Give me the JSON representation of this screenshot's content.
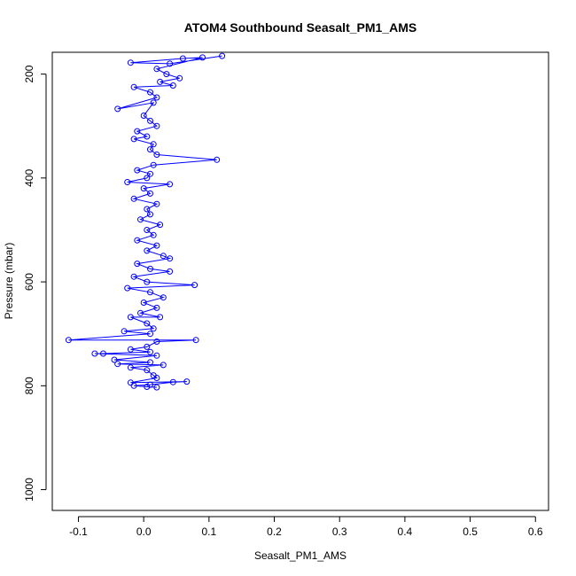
{
  "chart_data": {
    "type": "line",
    "title": "ATOM4 Southbound Seasalt_PM1_AMS",
    "xlabel": "Seasalt_PM1_AMS",
    "ylabel": "Pressure (mbar)",
    "xlim": [
      -0.14,
      0.62
    ],
    "ylim": [
      1040,
      158
    ],
    "y_reversed": true,
    "grid": false,
    "legend": "none",
    "x_ticks": [
      -0.1,
      0.0,
      0.1,
      0.2,
      0.3,
      0.4,
      0.5,
      0.6
    ],
    "x_tick_labels": [
      "-0.1",
      "0.0",
      "0.1",
      "0.2",
      "0.3",
      "0.4",
      "0.5",
      "0.6"
    ],
    "y_ticks": [
      200,
      400,
      600,
      800,
      1000
    ],
    "y_tick_labels": [
      "200",
      "400",
      "600",
      "800",
      "1000"
    ],
    "series": [
      {
        "color": "#0000FF",
        "marker": "open-circle",
        "line": true,
        "points": [
          [
            0.12,
            165
          ],
          [
            0.04,
            180
          ],
          [
            -0.02,
            178
          ],
          [
            0.06,
            170
          ],
          [
            0.09,
            168
          ],
          [
            0.02,
            190
          ],
          [
            0.035,
            200
          ],
          [
            0.055,
            208
          ],
          [
            0.025,
            215
          ],
          [
            0.045,
            222
          ],
          [
            -0.015,
            225
          ],
          [
            0.01,
            235
          ],
          [
            0.02,
            245
          ],
          [
            -0.04,
            267
          ],
          [
            0.015,
            255
          ],
          [
            0.0,
            280
          ],
          [
            0.01,
            290
          ],
          [
            0.02,
            300
          ],
          [
            -0.01,
            310
          ],
          [
            0.005,
            320
          ],
          [
            -0.015,
            325
          ],
          [
            0.015,
            335
          ],
          [
            0.01,
            345
          ],
          [
            0.02,
            355
          ],
          [
            0.112,
            365
          ],
          [
            0.015,
            375
          ],
          [
            -0.01,
            385
          ],
          [
            0.01,
            392
          ],
          [
            0.005,
            400
          ],
          [
            -0.025,
            408
          ],
          [
            0.04,
            412
          ],
          [
            0.0,
            420
          ],
          [
            0.01,
            430
          ],
          [
            -0.015,
            440
          ],
          [
            0.02,
            450
          ],
          [
            0.005,
            460
          ],
          [
            0.01,
            470
          ],
          [
            -0.005,
            480
          ],
          [
            0.025,
            490
          ],
          [
            0.005,
            500
          ],
          [
            0.015,
            510
          ],
          [
            -0.01,
            520
          ],
          [
            0.02,
            530
          ],
          [
            0.005,
            540
          ],
          [
            0.03,
            550
          ],
          [
            0.04,
            555
          ],
          [
            -0.01,
            565
          ],
          [
            0.01,
            575
          ],
          [
            0.04,
            580
          ],
          [
            -0.015,
            590
          ],
          [
            0.005,
            600
          ],
          [
            0.078,
            606
          ],
          [
            -0.025,
            612
          ],
          [
            0.01,
            620
          ],
          [
            0.03,
            630
          ],
          [
            0.0,
            640
          ],
          [
            0.02,
            650
          ],
          [
            -0.005,
            660
          ],
          [
            0.025,
            668
          ],
          [
            -0.02,
            668
          ],
          [
            0.005,
            680
          ],
          [
            0.015,
            690
          ],
          [
            -0.03,
            695
          ],
          [
            0.01,
            700
          ],
          [
            -0.115,
            712
          ],
          [
            0.08,
            712
          ],
          [
            0.02,
            715
          ],
          [
            0.005,
            725
          ],
          [
            -0.02,
            730
          ],
          [
            0.01,
            735
          ],
          [
            -0.062,
            738
          ],
          [
            -0.075,
            738
          ],
          [
            0.02,
            742
          ],
          [
            -0.045,
            750
          ],
          [
            0.01,
            755
          ],
          [
            -0.04,
            758
          ],
          [
            0.03,
            760
          ],
          [
            -0.02,
            765
          ],
          [
            0.005,
            770
          ],
          [
            0.015,
            780
          ],
          [
            0.02,
            785
          ],
          [
            -0.02,
            794
          ],
          [
            0.066,
            792
          ],
          [
            0.045,
            793
          ],
          [
            0.01,
            798
          ],
          [
            -0.015,
            800
          ],
          [
            0.005,
            802
          ],
          [
            0.02,
            803
          ]
        ]
      }
    ]
  }
}
